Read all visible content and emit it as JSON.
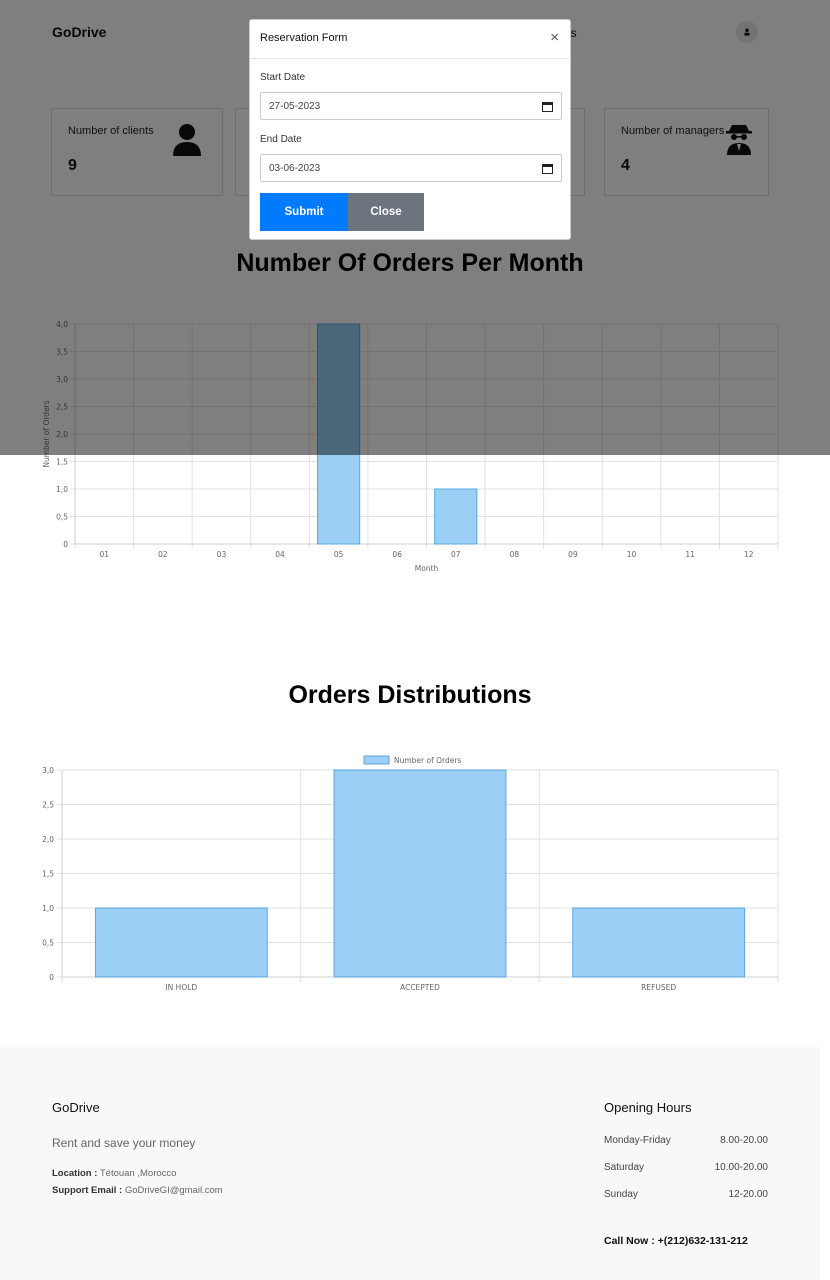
{
  "header": {
    "brand": "GoDrive",
    "nav_peek": "ers"
  },
  "stats": [
    {
      "label": "Number of clients",
      "value": "9",
      "icon": "user-icon"
    },
    {
      "label": "Number of managers",
      "value": "4",
      "icon": "spy-icon"
    }
  ],
  "orders_per_month": {
    "title": "Number Of Orders Per Month",
    "chart_data": {
      "type": "bar",
      "categories": [
        "01",
        "02",
        "03",
        "04",
        "05",
        "06",
        "07",
        "08",
        "09",
        "10",
        "11",
        "12"
      ],
      "values": [
        0,
        0,
        0,
        0,
        4,
        0,
        1,
        0,
        0,
        0,
        0,
        0
      ],
      "xlabel": "Month",
      "ylabel": "Number of Orders",
      "ylim": [
        0,
        4
      ],
      "yticks": [
        "0",
        "0,5",
        "1,0",
        "1,5",
        "2,0",
        "2,5",
        "3,0",
        "3,5",
        "4,0"
      ],
      "bar_color": "#9bcff5",
      "grid": true
    }
  },
  "orders_distribution": {
    "title": "Orders Distributions",
    "chart_data": {
      "type": "bar",
      "categories": [
        "IN HOLD",
        "ACCEPTED",
        "REFUSED"
      ],
      "series": [
        {
          "name": "Number of Orders",
          "values": [
            1,
            3,
            1
          ]
        }
      ],
      "ylim": [
        0,
        3
      ],
      "yticks": [
        "0",
        "0,5",
        "1,0",
        "1,5",
        "2,0",
        "2,5",
        "3,0"
      ],
      "legend": "top",
      "bar_color": "#9bcff5",
      "grid": true
    }
  },
  "footer": {
    "brand": "GoDrive",
    "tagline": "Rent and save your money",
    "location_label": "Location :",
    "location_value": " Tétouan ,Morocco",
    "email_label": "Support Email :",
    "email_value": " GoDriveGI@gmail.com",
    "hours_title": "Opening Hours",
    "hours": [
      {
        "day": "Monday-Friday",
        "time": "8.00-20.00"
      },
      {
        "day": "Saturday",
        "time": "10.00-20.00"
      },
      {
        "day": "Sunday",
        "time": "12-20.00"
      }
    ],
    "call": "Call Now : +(212)632-131-212"
  },
  "modal": {
    "title": "Reservation Form",
    "close_glyph": "×",
    "start_label": "Start Date",
    "start_value": "27-05-2023",
    "end_label": "End Date",
    "end_value": "03-06-2023",
    "submit_label": "Submit",
    "close_label": "Close"
  }
}
